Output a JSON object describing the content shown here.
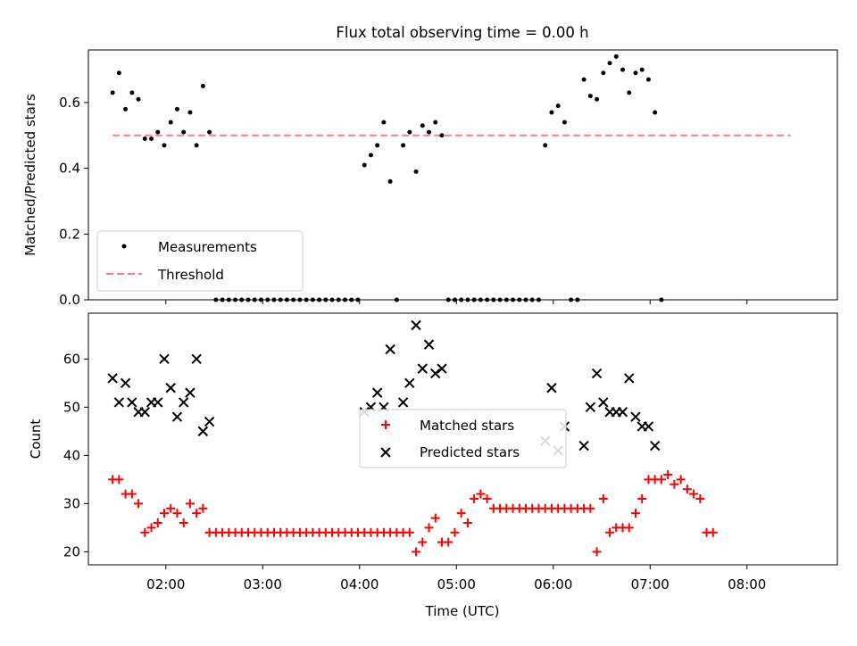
{
  "figure": {
    "title": "Flux total observing time = 0.00 h",
    "xlabel": "Time (UTC)"
  },
  "colors": {
    "measurement": "#000000",
    "threshold": "#ff7f7f",
    "matched": "#ff0000",
    "predicted": "#000000",
    "axis": "#000000"
  },
  "chart_data": [
    {
      "type": "scatter",
      "ylabel": "Matched/Predicted stars",
      "ylim": [
        0.0,
        0.76
      ],
      "yticks": [
        0.0,
        0.2,
        0.4,
        0.6
      ],
      "ytick_labels": [
        "0.0",
        "0.2",
        "0.4",
        "0.6"
      ],
      "xlim": [
        "01:12",
        "08:56"
      ],
      "xticks": [
        "02:00",
        "03:00",
        "04:00",
        "05:00",
        "06:00",
        "07:00",
        "08:00"
      ],
      "legend": {
        "placement": "lower-left",
        "entries": [
          "Measurements",
          "Threshold"
        ]
      },
      "threshold": {
        "name": "Threshold",
        "y": 0.5,
        "x_range": [
          "01:27",
          "08:27"
        ]
      },
      "series": [
        {
          "name": "Measurements",
          "marker": "dot",
          "points": [
            [
              "01:27",
              0.63
            ],
            [
              "01:31",
              0.69
            ],
            [
              "01:35",
              0.58
            ],
            [
              "01:39",
              0.63
            ],
            [
              "01:43",
              0.61
            ],
            [
              "01:47",
              0.49
            ],
            [
              "01:51",
              0.49
            ],
            [
              "01:55",
              0.51
            ],
            [
              "01:59",
              0.47
            ],
            [
              "02:03",
              0.54
            ],
            [
              "02:07",
              0.58
            ],
            [
              "02:11",
              0.51
            ],
            [
              "02:15",
              0.57
            ],
            [
              "02:19",
              0.47
            ],
            [
              "02:23",
              0.65
            ],
            [
              "02:27",
              0.51
            ],
            [
              "02:31",
              0.0
            ],
            [
              "02:35",
              0.0
            ],
            [
              "02:39",
              0.0
            ],
            [
              "02:43",
              0.0
            ],
            [
              "02:47",
              0.0
            ],
            [
              "02:51",
              0.0
            ],
            [
              "02:55",
              0.0
            ],
            [
              "02:59",
              0.0
            ],
            [
              "03:03",
              0.0
            ],
            [
              "03:07",
              0.0
            ],
            [
              "03:11",
              0.0
            ],
            [
              "03:15",
              0.0
            ],
            [
              "03:19",
              0.0
            ],
            [
              "03:23",
              0.0
            ],
            [
              "03:27",
              0.0
            ],
            [
              "03:31",
              0.0
            ],
            [
              "03:35",
              0.0
            ],
            [
              "03:39",
              0.0
            ],
            [
              "03:43",
              0.0
            ],
            [
              "03:47",
              0.0
            ],
            [
              "03:51",
              0.0
            ],
            [
              "03:55",
              0.0
            ],
            [
              "03:59",
              0.0
            ],
            [
              "04:03",
              0.41
            ],
            [
              "04:07",
              0.44
            ],
            [
              "04:11",
              0.47
            ],
            [
              "04:15",
              0.54
            ],
            [
              "04:19",
              0.36
            ],
            [
              "04:23",
              0.0
            ],
            [
              "04:27",
              0.47
            ],
            [
              "04:31",
              0.51
            ],
            [
              "04:35",
              0.39
            ],
            [
              "04:39",
              0.53
            ],
            [
              "04:43",
              0.51
            ],
            [
              "04:47",
              0.54
            ],
            [
              "04:51",
              0.5
            ],
            [
              "04:55",
              0.0
            ],
            [
              "04:59",
              0.0
            ],
            [
              "05:03",
              0.0
            ],
            [
              "05:07",
              0.0
            ],
            [
              "05:11",
              0.0
            ],
            [
              "05:15",
              0.0
            ],
            [
              "05:19",
              0.0
            ],
            [
              "05:23",
              0.0
            ],
            [
              "05:27",
              0.0
            ],
            [
              "05:31",
              0.0
            ],
            [
              "05:35",
              0.0
            ],
            [
              "05:39",
              0.0
            ],
            [
              "05:43",
              0.0
            ],
            [
              "05:47",
              0.0
            ],
            [
              "05:51",
              0.0
            ],
            [
              "05:55",
              0.47
            ],
            [
              "05:59",
              0.57
            ],
            [
              "06:03",
              0.59
            ],
            [
              "06:07",
              0.54
            ],
            [
              "06:11",
              0.0
            ],
            [
              "06:15",
              0.0
            ],
            [
              "06:19",
              0.67
            ],
            [
              "06:23",
              0.62
            ],
            [
              "06:27",
              0.61
            ],
            [
              "06:31",
              0.69
            ],
            [
              "06:35",
              0.72
            ],
            [
              "06:39",
              0.74
            ],
            [
              "06:43",
              0.7
            ],
            [
              "06:47",
              0.63
            ],
            [
              "06:51",
              0.69
            ],
            [
              "06:55",
              0.7
            ],
            [
              "06:59",
              0.67
            ],
            [
              "07:03",
              0.57
            ],
            [
              "07:07",
              0.0
            ]
          ]
        }
      ]
    },
    {
      "type": "scatter",
      "ylabel": "Count",
      "ylim": [
        17.3,
        69.5
      ],
      "yticks": [
        20,
        30,
        40,
        50,
        60
      ],
      "ytick_labels": [
        "20",
        "30",
        "40",
        "50",
        "60"
      ],
      "xlim": [
        "01:12",
        "08:56"
      ],
      "xticks": [
        "02:00",
        "03:00",
        "04:00",
        "05:00",
        "06:00",
        "07:00",
        "08:00"
      ],
      "xtick_labels": [
        "02:00",
        "03:00",
        "04:00",
        "05:00",
        "06:00",
        "07:00",
        "08:00"
      ],
      "legend": {
        "placement": "center",
        "entries": [
          "Matched stars",
          "Predicted stars"
        ]
      },
      "series": [
        {
          "name": "Matched stars",
          "marker": "plus",
          "points": [
            [
              "01:27",
              35
            ],
            [
              "01:31",
              35
            ],
            [
              "01:35",
              32
            ],
            [
              "01:39",
              32
            ],
            [
              "01:43",
              30
            ],
            [
              "01:47",
              24
            ],
            [
              "01:51",
              25
            ],
            [
              "01:55",
              26
            ],
            [
              "01:59",
              28
            ],
            [
              "02:03",
              29
            ],
            [
              "02:07",
              28
            ],
            [
              "02:11",
              26
            ],
            [
              "02:15",
              30
            ],
            [
              "02:19",
              28
            ],
            [
              "02:23",
              29
            ],
            [
              "02:27",
              24
            ],
            [
              "02:31",
              24
            ],
            [
              "02:35",
              24
            ],
            [
              "02:39",
              24
            ],
            [
              "02:43",
              24
            ],
            [
              "02:47",
              24
            ],
            [
              "02:51",
              24
            ],
            [
              "02:55",
              24
            ],
            [
              "02:59",
              24
            ],
            [
              "03:03",
              24
            ],
            [
              "03:07",
              24
            ],
            [
              "03:11",
              24
            ],
            [
              "03:15",
              24
            ],
            [
              "03:19",
              24
            ],
            [
              "03:23",
              24
            ],
            [
              "03:27",
              24
            ],
            [
              "03:31",
              24
            ],
            [
              "03:35",
              24
            ],
            [
              "03:39",
              24
            ],
            [
              "03:43",
              24
            ],
            [
              "03:47",
              24
            ],
            [
              "03:51",
              24
            ],
            [
              "03:55",
              24
            ],
            [
              "03:59",
              24
            ],
            [
              "04:03",
              24
            ],
            [
              "04:07",
              24
            ],
            [
              "04:11",
              24
            ],
            [
              "04:15",
              24
            ],
            [
              "04:19",
              24
            ],
            [
              "04:23",
              24
            ],
            [
              "04:27",
              24
            ],
            [
              "04:31",
              24
            ],
            [
              "04:35",
              20
            ],
            [
              "04:39",
              22
            ],
            [
              "04:43",
              25
            ],
            [
              "04:47",
              27
            ],
            [
              "04:51",
              22
            ],
            [
              "04:55",
              22
            ],
            [
              "04:59",
              24
            ],
            [
              "05:03",
              28
            ],
            [
              "05:07",
              26
            ],
            [
              "05:11",
              31
            ],
            [
              "05:15",
              32
            ],
            [
              "05:19",
              31
            ],
            [
              "05:23",
              29
            ],
            [
              "05:27",
              29
            ],
            [
              "05:31",
              29
            ],
            [
              "05:35",
              29
            ],
            [
              "05:39",
              29
            ],
            [
              "05:43",
              29
            ],
            [
              "05:47",
              29
            ],
            [
              "05:51",
              29
            ],
            [
              "05:55",
              29
            ],
            [
              "05:59",
              29
            ],
            [
              "06:03",
              29
            ],
            [
              "06:07",
              29
            ],
            [
              "06:11",
              29
            ],
            [
              "06:15",
              29
            ],
            [
              "06:19",
              29
            ],
            [
              "06:23",
              29
            ],
            [
              "06:27",
              20
            ],
            [
              "06:31",
              31
            ],
            [
              "06:35",
              24
            ],
            [
              "06:39",
              25
            ],
            [
              "06:43",
              25
            ],
            [
              "06:47",
              25
            ],
            [
              "06:51",
              28
            ],
            [
              "06:55",
              31
            ],
            [
              "06:59",
              35
            ],
            [
              "07:03",
              35
            ],
            [
              "07:07",
              35
            ],
            [
              "07:11",
              36
            ],
            [
              "07:15",
              34
            ],
            [
              "07:19",
              35
            ],
            [
              "07:23",
              33
            ],
            [
              "07:27",
              32
            ],
            [
              "07:31",
              31
            ],
            [
              "07:35",
              24
            ],
            [
              "07:39",
              24
            ]
          ]
        },
        {
          "name": "Predicted stars",
          "marker": "x",
          "points": [
            [
              "01:27",
              56
            ],
            [
              "01:31",
              51
            ],
            [
              "01:35",
              55
            ],
            [
              "01:39",
              51
            ],
            [
              "01:43",
              49
            ],
            [
              "01:47",
              49
            ],
            [
              "01:51",
              51
            ],
            [
              "01:55",
              51
            ],
            [
              "01:59",
              60
            ],
            [
              "02:03",
              54
            ],
            [
              "02:07",
              48
            ],
            [
              "02:11",
              51
            ],
            [
              "02:15",
              53
            ],
            [
              "02:19",
              60
            ],
            [
              "02:23",
              45
            ],
            [
              "02:27",
              47
            ],
            [
              "04:03",
              49
            ],
            [
              "04:07",
              50
            ],
            [
              "04:11",
              53
            ],
            [
              "04:15",
              50
            ],
            [
              "04:19",
              62
            ],
            [
              "04:27",
              51
            ],
            [
              "04:31",
              55
            ],
            [
              "04:35",
              67
            ],
            [
              "04:39",
              58
            ],
            [
              "04:43",
              63
            ],
            [
              "04:47",
              57
            ],
            [
              "04:51",
              58
            ],
            [
              "05:55",
              43
            ],
            [
              "05:59",
              54
            ],
            [
              "06:03",
              41
            ],
            [
              "06:07",
              46
            ],
            [
              "06:19",
              42
            ],
            [
              "06:23",
              50
            ],
            [
              "06:27",
              57
            ],
            [
              "06:31",
              51
            ],
            [
              "06:35",
              49
            ],
            [
              "06:39",
              49
            ],
            [
              "06:43",
              49
            ],
            [
              "06:47",
              56
            ],
            [
              "06:51",
              48
            ],
            [
              "06:55",
              46
            ],
            [
              "06:59",
              46
            ],
            [
              "07:03",
              42
            ]
          ]
        }
      ]
    }
  ]
}
